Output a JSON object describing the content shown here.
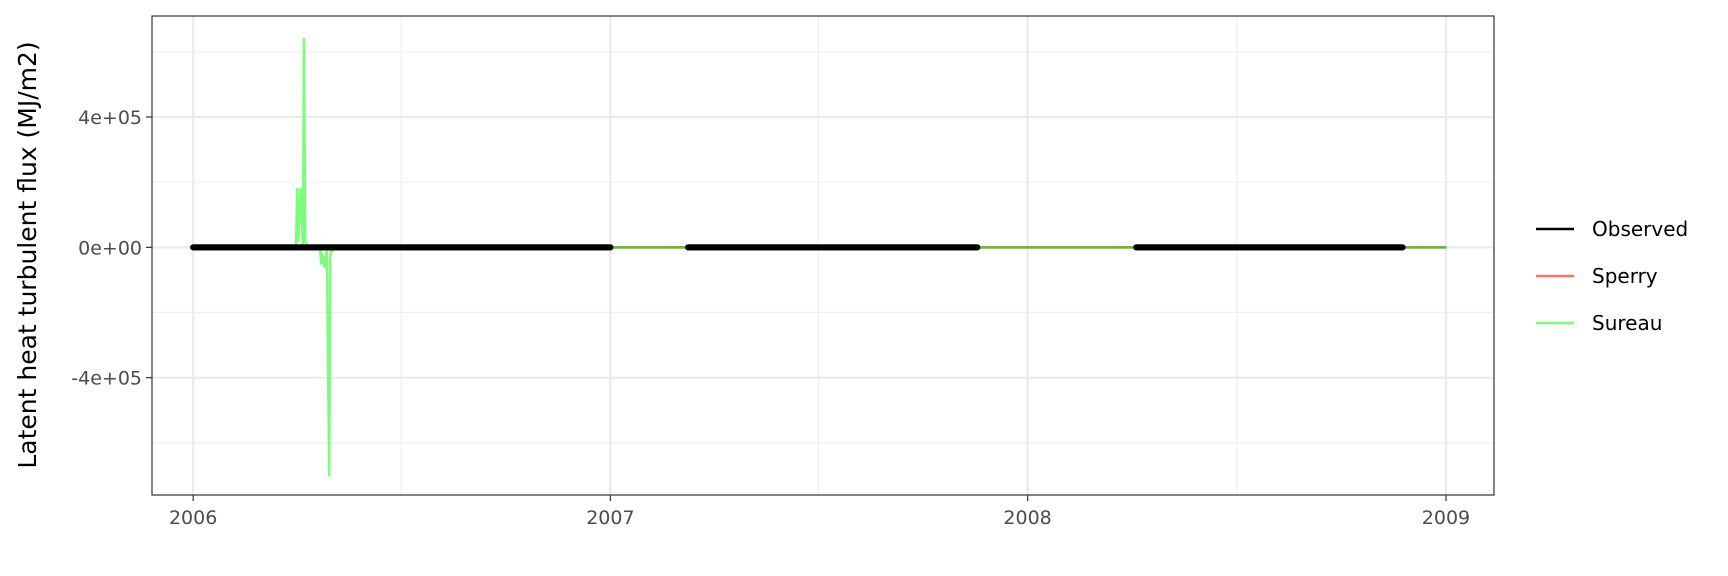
{
  "chart_data": {
    "type": "line",
    "title": "",
    "xlabel": "",
    "ylabel": "Latent heat turbulent flux (MJ/m2)",
    "x_ticks": [
      "2006",
      "2007",
      "2008",
      "2009"
    ],
    "y_ticks": [
      "-4e+05",
      "0e+00",
      "4e+05"
    ],
    "xlim": [
      "2005-11-26",
      "2009-02-12"
    ],
    "ylim": [
      -760000,
      710000
    ],
    "grid": true,
    "legend_position": "right",
    "series": [
      {
        "name": "Observed",
        "color": "#000000",
        "segments": [
          {
            "x": [
              "2006-01-01",
              "2007-01-01"
            ],
            "y": [
              0,
              0
            ]
          },
          {
            "x": [
              "2007-03-10",
              "2007-11-18"
            ],
            "y": [
              0,
              0
            ]
          },
          {
            "x": [
              "2008-04-05",
              "2008-11-24"
            ],
            "y": [
              0,
              0
            ]
          }
        ]
      },
      {
        "name": "Sperry",
        "color": "#f8766d",
        "segments": [
          {
            "x": [
              "2006-01-01",
              "2009-01-01"
            ],
            "y": [
              0,
              0
            ]
          }
        ]
      },
      {
        "name": "Sureau",
        "color": "#7cfc7c",
        "segments": [
          {
            "x": [
              "2006-01-01",
              "2006-04-01",
              "2006-04-02",
              "2006-04-03",
              "2006-04-05",
              "2006-04-07",
              "2006-04-08",
              "2006-04-09",
              "2006-04-11",
              "2006-04-13",
              "2006-04-15",
              "2006-04-22",
              "2006-04-23",
              "2006-04-24",
              "2006-04-26",
              "2006-04-28",
              "2006-04-30",
              "2006-05-01",
              "2006-05-02",
              "2006-05-03",
              "2006-05-05",
              "2009-01-01"
            ],
            "y": [
              0,
              0,
              180000,
              20000,
              180000,
              10000,
              640000,
              20000,
              5000,
              0,
              0,
              0,
              -50000,
              -20000,
              -60000,
              -10000,
              -700000,
              -30000,
              0,
              -10000,
              0,
              0
            ]
          }
        ]
      }
    ]
  }
}
